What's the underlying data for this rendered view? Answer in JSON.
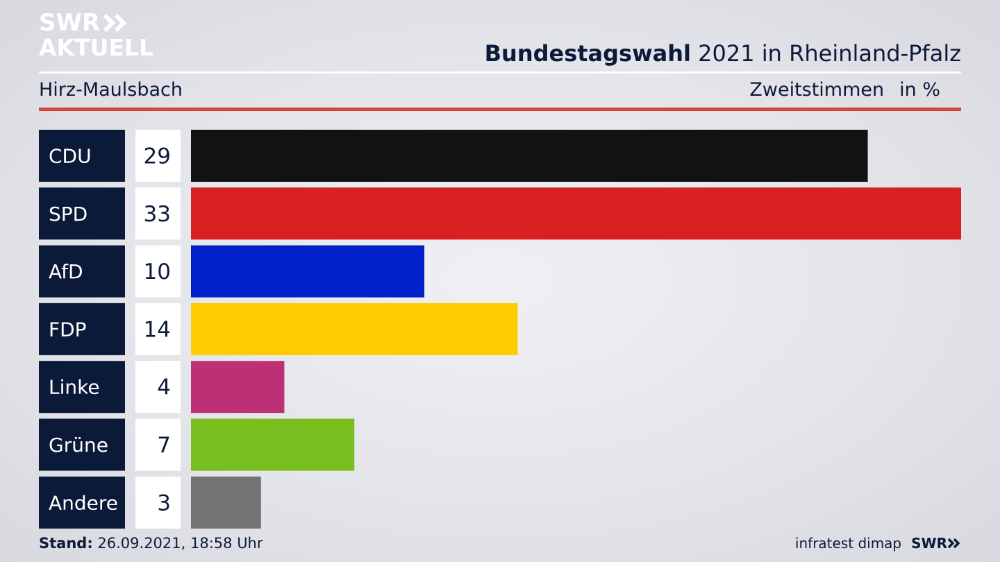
{
  "logo": {
    "line1": "SWR",
    "line2": "AKTUELL"
  },
  "header": {
    "title_bold": "Bundestagswahl",
    "title_rest": "2021 in Rheinland-Pfalz",
    "subtitle_left": "Hirz-Maulsbach",
    "subtitle_right": "Zweitstimmen",
    "unit": "in %"
  },
  "footer": {
    "stand_label": "Stand:",
    "stand_value": "26.09.2021, 18:58 Uhr",
    "source": "infratest dimap",
    "brand": "SWR"
  },
  "colors": {
    "label_bg": "#0c1a3a",
    "value_bg": "#ffffff",
    "accent_red": "#d4453a"
  },
  "chart_data": {
    "type": "bar",
    "orientation": "horizontal",
    "categories": [
      "CDU",
      "SPD",
      "AfD",
      "FDP",
      "Linke",
      "Grüne",
      "Andere"
    ],
    "values": [
      29,
      33,
      10,
      14,
      4,
      7,
      3
    ],
    "colors": [
      "#121212",
      "#d82020",
      "#0021c7",
      "#ffcc00",
      "#be3075",
      "#78be1e",
      "#737373"
    ],
    "xlim": [
      0,
      33
    ],
    "grid": false,
    "legend": "none"
  }
}
